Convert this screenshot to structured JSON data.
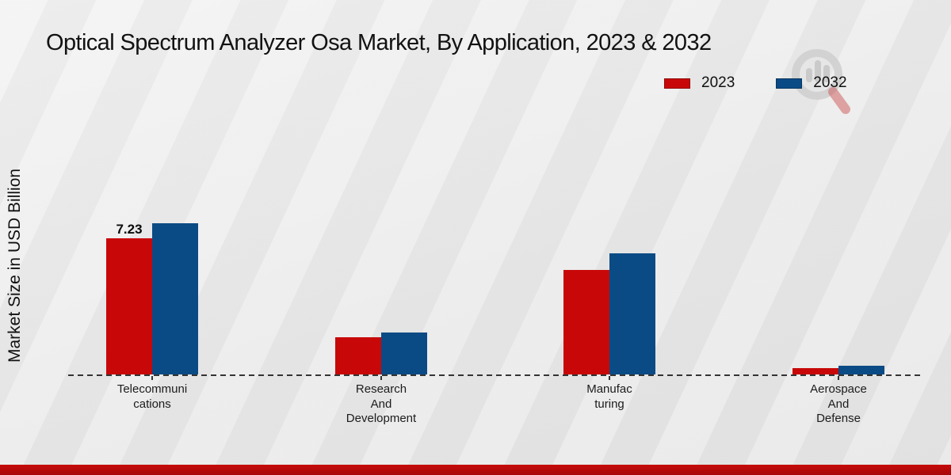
{
  "chart_data": {
    "type": "bar",
    "title": "Optical Spectrum Analyzer Osa Market, By Application, 2023 & 2032",
    "ylabel": "Market Size in USD Billion",
    "xlabel": "",
    "categories": [
      "Telecommunications",
      "Research And Development",
      "Manufacturing",
      "Aerospace And Defense"
    ],
    "category_label_lines": [
      [
        "Telecommuni",
        "cations"
      ],
      [
        "Research",
        "And",
        "Development"
      ],
      [
        "Manufac",
        "turing"
      ],
      [
        "Aerospace",
        "And",
        "Defense"
      ]
    ],
    "series": [
      {
        "name": "2023",
        "color": "#c80808",
        "values": [
          7.23,
          1.98,
          5.55,
          0.34
        ]
      },
      {
        "name": "2032",
        "color": "#0b4b85",
        "values": [
          8.03,
          2.23,
          6.43,
          0.46
        ]
      }
    ],
    "value_labels": [
      {
        "category_index": 0,
        "series_index": 0,
        "text": "7.23"
      }
    ],
    "ylim": [
      0,
      10
    ],
    "grid": false,
    "legend_position": "top-right",
    "axis_style": "dashed-baseline-no-ticks-values"
  },
  "footer": {
    "band_color": "#b70a0a"
  },
  "watermark": {
    "icon": "magnifier-bar-chart-logo-icon"
  }
}
